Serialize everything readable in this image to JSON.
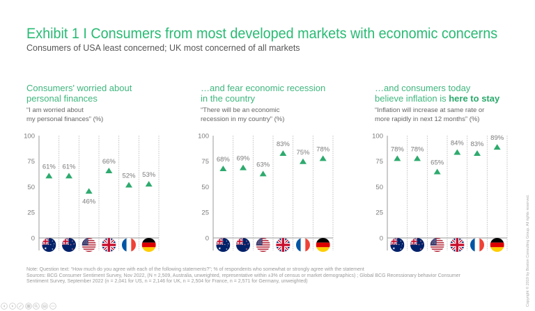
{
  "title": "Exhibit 1 I Consumers from most developed markets with economic concerns",
  "subtitle": "Consumers of USA least concerned; UK most concerned of all markets",
  "colors": {
    "title_green": "#29ba74",
    "heading_green": "#3fb67d",
    "marker_green": "#2eaa6e",
    "text_gray": "#555555"
  },
  "panels": [
    {
      "heading_line1": "Consumers' worried about",
      "heading_line2": "personal finances",
      "heading_line2_bold": "",
      "quote_line1": "“I am worried about",
      "quote_line2": "my personal finances” (%)"
    },
    {
      "heading_line1": "…and fear economic recession",
      "heading_line2": "in the country",
      "heading_line2_bold": "",
      "quote_line1": "“There will be an economic",
      "quote_line2": "recession in my country” (%)"
    },
    {
      "heading_line1": "…and consumers today",
      "heading_line2": "believe inflation is ",
      "heading_line2_bold": "here to stay",
      "quote_line1": "“Inflation will increase at same rate or",
      "quote_line2": "more rapidly in next 12 months” (%)"
    }
  ],
  "chart_data": [
    {
      "type": "scatter",
      "title": "Consumers' worried about personal finances",
      "subtitle": "“I am worried about my personal finances” (%)",
      "categories": [
        "Australia",
        "New Zealand",
        "USA",
        "UK",
        "France",
        "Germany"
      ],
      "category_icons": [
        "flag-australia-icon",
        "flag-new-zealand-icon",
        "flag-usa-icon",
        "flag-uk-icon",
        "flag-france-icon",
        "flag-germany-icon"
      ],
      "values": [
        61,
        61,
        46,
        66,
        52,
        53
      ],
      "data_labels": [
        "61%",
        "61%",
        "46%",
        "66%",
        "52%",
        "53%"
      ],
      "marker": "triangle",
      "yticks": [
        100,
        75,
        50,
        25,
        0
      ],
      "ylim": [
        0,
        100
      ],
      "xlabel": "",
      "ylabel": "",
      "grid": "dotted vertical column dividers"
    },
    {
      "type": "scatter",
      "title": "…and fear economic recession in the country",
      "subtitle": "“There will be an economic recession in my country” (%)",
      "categories": [
        "Australia",
        "New Zealand",
        "USA",
        "UK",
        "France",
        "Germany"
      ],
      "category_icons": [
        "flag-australia-icon",
        "flag-new-zealand-icon",
        "flag-usa-icon",
        "flag-uk-icon",
        "flag-france-icon",
        "flag-germany-icon"
      ],
      "values": [
        68,
        69,
        63,
        83,
        75,
        78
      ],
      "data_labels": [
        "68%",
        "69%",
        "63%",
        "83%",
        "75%",
        "78%"
      ],
      "marker": "triangle",
      "yticks": [
        100,
        75,
        50,
        25,
        0
      ],
      "ylim": [
        0,
        100
      ],
      "xlabel": "",
      "ylabel": "",
      "grid": "dotted vertical column dividers"
    },
    {
      "type": "scatter",
      "title": "…and consumers today believe inflation is here to stay",
      "subtitle": "“Inflation will increase at same rate or more rapidly in next 12 months” (%)",
      "categories": [
        "Australia",
        "New Zealand",
        "USA",
        "UK",
        "France",
        "Germany"
      ],
      "category_icons": [
        "flag-australia-icon",
        "flag-new-zealand-icon",
        "flag-usa-icon",
        "flag-uk-icon",
        "flag-france-icon",
        "flag-germany-icon"
      ],
      "values": [
        78,
        78,
        65,
        84,
        83,
        89
      ],
      "data_labels": [
        "78%",
        "78%",
        "65%",
        "84%",
        "83%",
        "89%"
      ],
      "marker": "triangle",
      "yticks": [
        100,
        75,
        50,
        25,
        0
      ],
      "ylim": [
        0,
        100
      ],
      "xlabel": "",
      "ylabel": "",
      "grid": "dotted vertical column dividers"
    }
  ],
  "footnote": {
    "note": "Note: Question text: “How much do you agree with each of the following statements?”; % of respondents who somewhat or strongly agree with the statement",
    "sources_line1": "Sources: BCG Consumer Sentiment Survey, Nov 2022, (N = 2,509, Australia, unweighted, representative within ±3% of census or market demographics) ; Global BCG Recessionary behavior Consumer",
    "sources_line2": "Sentiment Survey, September 2022 (n = 2,041 for US, n = 2,146 for UK, n = 2,504 for France, n = 2,571 for Germany, unweighted)"
  },
  "copyright": "Copyright © 2019 by Boston Consulting Group. All rights reserved.",
  "slideshow_controls": [
    {
      "icon": "previous-slide-icon"
    },
    {
      "icon": "next-slide-icon"
    },
    {
      "icon": "pen-icon"
    },
    {
      "icon": "all-slides-icon"
    },
    {
      "icon": "zoom-icon"
    },
    {
      "icon": "subtitles-icon"
    },
    {
      "icon": "more-options-icon"
    }
  ]
}
